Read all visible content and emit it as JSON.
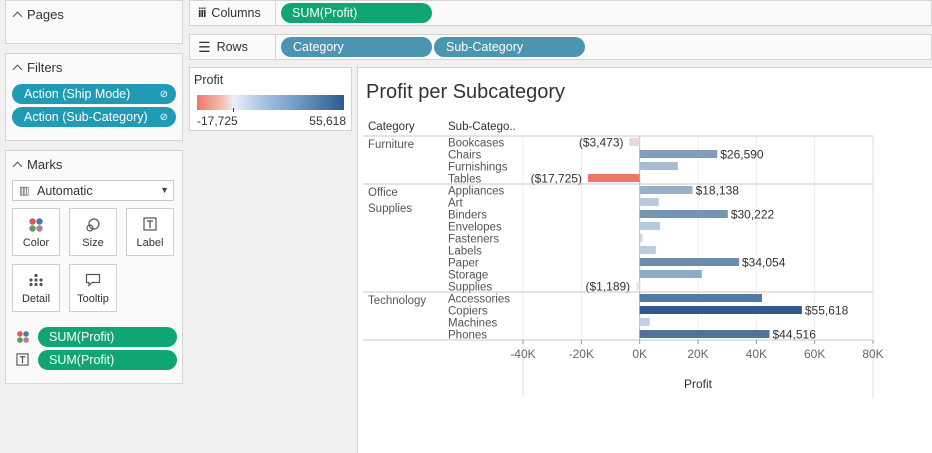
{
  "sidebar": {
    "pages": {
      "title": "Pages"
    },
    "filters": {
      "title": "Filters",
      "items": [
        {
          "label": "Action (Ship Mode)"
        },
        {
          "label": "Action (Sub-Category)"
        }
      ]
    },
    "marks": {
      "title": "Marks",
      "mark_type": "Automatic",
      "buttons": {
        "color": "Color",
        "size": "Size",
        "label": "Label",
        "detail": "Detail",
        "tooltip": "Tooltip"
      },
      "encodings": [
        {
          "type": "color",
          "field": "SUM(Profit)"
        },
        {
          "type": "label",
          "field": "SUM(Profit)"
        }
      ]
    }
  },
  "shelves": {
    "columns": {
      "label": "Columns",
      "pills": [
        "SUM(Profit)"
      ]
    },
    "rows": {
      "label": "Rows",
      "pills": [
        "Category",
        "Sub-Category"
      ]
    }
  },
  "legend": {
    "title": "Profit",
    "min_label": "-17,725",
    "max_label": "55,618",
    "colors": {
      "negative": "#f0766a",
      "mid": "#e8eff7",
      "positive": "#2e5b8c"
    }
  },
  "worksheet": {
    "title": "Profit per Subcategory",
    "header_category": "Category",
    "header_subcategory": "Sub-Catego.."
  },
  "chart_data": {
    "type": "bar",
    "orientation": "horizontal",
    "title": "Profit per Subcategory",
    "xlabel": "Profit",
    "xlim": [
      -40000,
      80000
    ],
    "x_ticks": [
      "-40K",
      "-20K",
      "0K",
      "20K",
      "40K",
      "60K",
      "80K"
    ],
    "x_tick_values": [
      -40000,
      -20000,
      0,
      20000,
      40000,
      60000,
      80000
    ],
    "groups": [
      {
        "category": "Furniture",
        "rows": [
          {
            "name": "Bookcases",
            "value": -3473,
            "label": "($3,473)"
          },
          {
            "name": "Chairs",
            "value": 26590,
            "label": "$26,590"
          },
          {
            "name": "Furnishings",
            "value": 13059,
            "label": ""
          },
          {
            "name": "Tables",
            "value": -17725,
            "label": "($17,725)"
          }
        ]
      },
      {
        "category": "Office Supplies",
        "rows": [
          {
            "name": "Appliances",
            "value": 18138,
            "label": "$18,138"
          },
          {
            "name": "Art",
            "value": 6528,
            "label": ""
          },
          {
            "name": "Binders",
            "value": 30222,
            "label": "$30,222"
          },
          {
            "name": "Envelopes",
            "value": 6964,
            "label": ""
          },
          {
            "name": "Fasteners",
            "value": 950,
            "label": ""
          },
          {
            "name": "Labels",
            "value": 5546,
            "label": ""
          },
          {
            "name": "Paper",
            "value": 34054,
            "label": "$34,054"
          },
          {
            "name": "Storage",
            "value": 21279,
            "label": ""
          },
          {
            "name": "Supplies",
            "value": -1189,
            "label": "($1,189)"
          }
        ]
      },
      {
        "category": "Technology",
        "rows": [
          {
            "name": "Accessories",
            "value": 41937,
            "label": ""
          },
          {
            "name": "Copiers",
            "value": 55618,
            "label": "$55,618"
          },
          {
            "name": "Machines",
            "value": 3385,
            "label": ""
          },
          {
            "name": "Phones",
            "value": 44516,
            "label": "$44,516"
          }
        ]
      }
    ]
  }
}
